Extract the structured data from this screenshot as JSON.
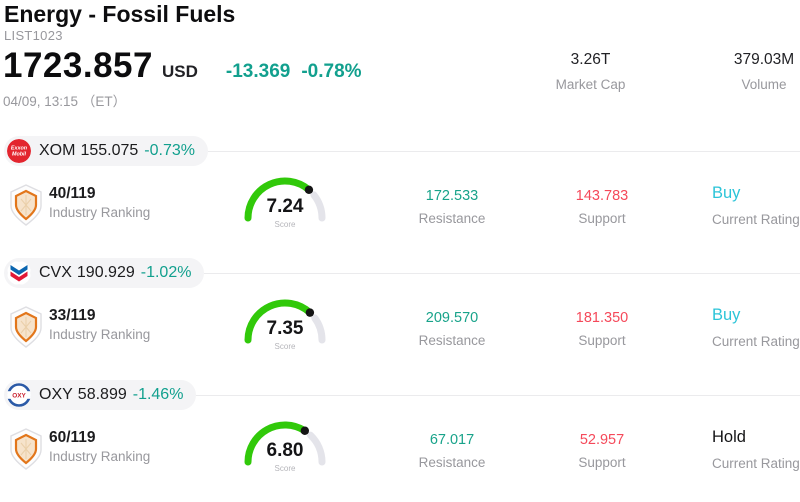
{
  "colors": {
    "positive_teal": "#12a08e",
    "resistance_teal": "#18a38a",
    "support_red": "#f5495a",
    "buy_cyan": "#2cc4d8",
    "hold_black": "#141416",
    "gauge_green": "#31c90a",
    "gauge_track": "#e4e4ea",
    "muted_gray": "#98989d",
    "pill_bg": "#f4f4f6",
    "xom_logo_red": "#e3252e",
    "cvx_blue": "#0b66b0",
    "cvx_red": "#e21836",
    "oxy_blue": "#2b5aa7"
  },
  "header": {
    "title": "Energy - Fossil Fuels",
    "list_id": "LIST1023",
    "price": "1723.857",
    "currency": "USD",
    "change_abs": "-13.369",
    "change_pct": "-0.78%",
    "datetime": "04/09, 13:15 （ET）",
    "market_cap_value": "3.26T",
    "market_cap_label": "Market Cap",
    "volume_value": "379.03M",
    "volume_label": "Volume"
  },
  "labels": {
    "industry_ranking": "Industry Ranking",
    "score": "Score",
    "resistance": "Resistance",
    "support": "Support",
    "current_rating": "Current Rating"
  },
  "stocks": [
    {
      "ticker": "XOM",
      "logo_text_1": "Exxon",
      "logo_text_2": "Mobil",
      "price": "155.075",
      "change_pct": "-0.73%",
      "industry_rank": "40/119",
      "score_display": "7.24",
      "score_value": 7.24,
      "resistance": "172.533",
      "support": "143.783",
      "rating": "Buy"
    },
    {
      "ticker": "CVX",
      "price": "190.929",
      "change_pct": "-1.02%",
      "industry_rank": "33/119",
      "score_display": "7.35",
      "score_value": 7.35,
      "resistance": "209.570",
      "support": "181.350",
      "rating": "Buy"
    },
    {
      "ticker": "OXY",
      "logo_text": "OXY",
      "price": "58.899",
      "change_pct": "-1.46%",
      "industry_rank": "60/119",
      "score_display": "6.80",
      "score_value": 6.8,
      "resistance": "67.017",
      "support": "52.957",
      "rating": "Hold"
    }
  ]
}
